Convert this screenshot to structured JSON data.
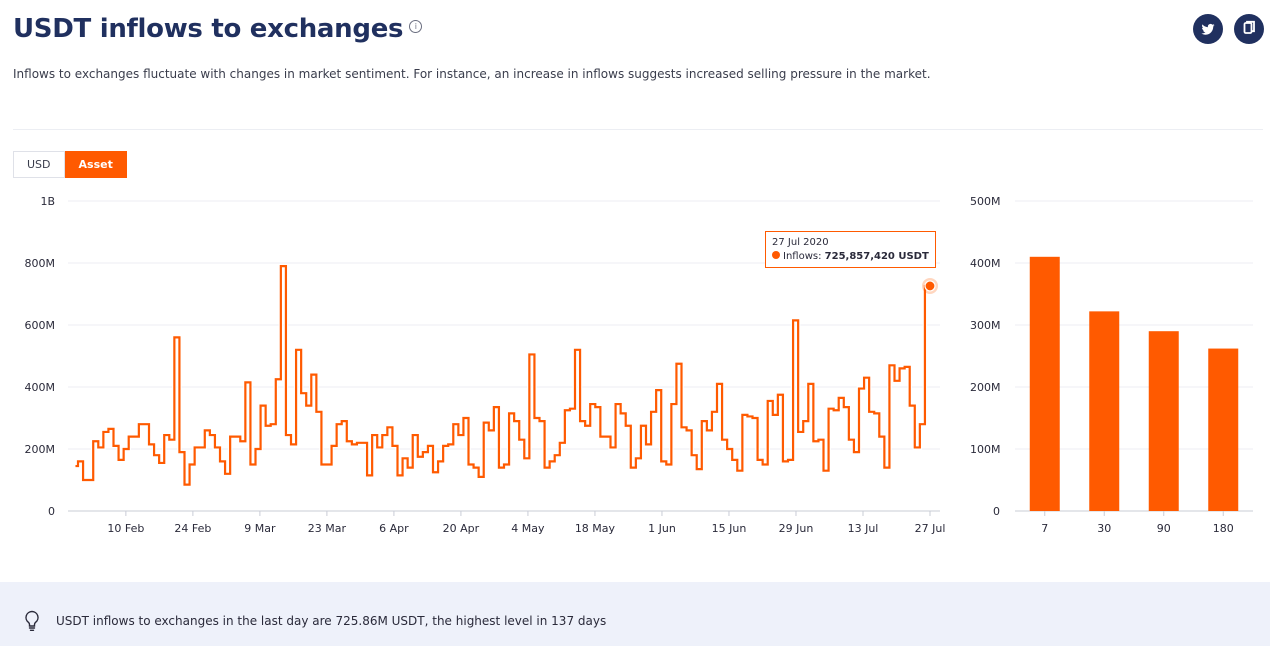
{
  "header": {
    "title": "USDT inflows to exchanges",
    "subtitle": "Inflows to exchanges fluctuate with changes in market sentiment. For instance, an increase in inflows suggests increased selling pressure in the market."
  },
  "toggle": {
    "options": [
      "USD",
      "Asset"
    ],
    "selected": "Asset"
  },
  "colors": {
    "accent": "#ff5a00",
    "navy": "#20305f"
  },
  "chart_data": [
    {
      "type": "line",
      "yticks": [
        "0",
        "200M",
        "400M",
        "600M",
        "800M",
        "1B"
      ],
      "ylim": [
        0,
        1000000000
      ],
      "xticks": [
        "10 Feb",
        "24 Feb",
        "9 Mar",
        "23 Mar",
        "6 Apr",
        "20 Apr",
        "4 May",
        "18 May",
        "1 Jun",
        "15 Jun",
        "29 Jun",
        "13 Jul",
        "27 Jul"
      ],
      "x_start": "2020-01-31",
      "x_end": "2020-07-27",
      "series": [
        {
          "step": true,
          "values_millions": [
            145,
            160,
            100,
            100,
            225,
            205,
            255,
            265,
            210,
            165,
            200,
            240,
            240,
            280,
            280,
            215,
            180,
            155,
            245,
            230,
            560,
            190,
            85,
            150,
            205,
            205,
            260,
            245,
            205,
            160,
            120,
            240,
            240,
            225,
            415,
            150,
            200,
            340,
            275,
            280,
            425,
            790,
            245,
            215,
            520,
            380,
            340,
            440,
            320,
            150,
            150,
            210,
            280,
            290,
            225,
            215,
            220,
            220,
            115,
            245,
            205,
            245,
            270,
            210,
            115,
            170,
            140,
            245,
            175,
            190,
            210,
            125,
            160,
            210,
            215,
            280,
            245,
            300,
            150,
            140,
            110,
            285,
            260,
            335,
            140,
            150,
            315,
            290,
            230,
            170,
            505,
            300,
            290,
            140,
            160,
            180,
            220,
            325,
            330,
            520,
            290,
            275,
            345,
            335,
            240,
            240,
            205,
            345,
            315,
            275,
            140,
            170,
            275,
            215,
            320,
            390,
            160,
            150,
            345,
            475,
            270,
            260,
            180,
            135,
            290,
            260,
            320,
            410,
            230,
            200,
            165,
            130,
            310,
            305,
            300,
            165,
            150,
            355,
            310,
            375,
            160,
            165,
            615,
            255,
            290,
            410,
            225,
            230,
            130,
            330,
            325,
            365,
            335,
            230,
            190,
            395,
            430,
            320,
            315,
            240,
            140,
            470,
            420,
            460,
            465,
            340,
            205,
            280,
            726
          ]
        }
      ],
      "tooltip": {
        "date": "27 Jul 2020",
        "label": "Inflows",
        "value": "725,857,420 USDT"
      }
    },
    {
      "type": "bar",
      "categories": [
        "7",
        "30",
        "90",
        "180"
      ],
      "values_millions": [
        410,
        322,
        290,
        262
      ],
      "yticks": [
        "0",
        "100M",
        "200M",
        "300M",
        "400M",
        "500M"
      ],
      "ylim": [
        0,
        500000000
      ]
    }
  ],
  "insight": {
    "text": "USDT inflows to exchanges in the last day are 725.86M USDT, the highest level in 137 days"
  }
}
